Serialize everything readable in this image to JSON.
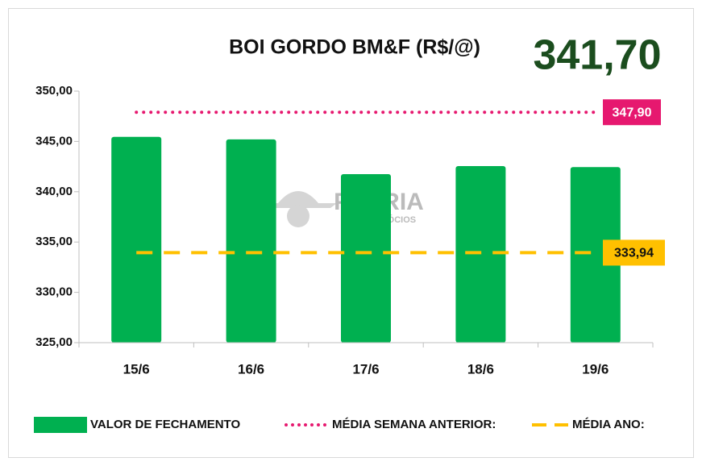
{
  "chart_data": {
    "type": "bar",
    "title": "BOI GORDO BM&F (R$/@)",
    "headline": "341,70",
    "watermark": {
      "brand": "PÁTRIA",
      "tagline": "AGRONEGÓCIOS"
    },
    "categories": [
      "15/6",
      "16/6",
      "17/6",
      "18/6",
      "19/6"
    ],
    "series": [
      {
        "name": "VALOR DE FECHAMENTO",
        "color": "#00b050",
        "values": [
          345.45,
          345.2,
          341.75,
          342.55,
          342.45
        ]
      }
    ],
    "reference_lines": [
      {
        "name": "MÉDIA SEMANA ANTERIOR:",
        "color": "#e6186f",
        "style": "dotted",
        "value": 347.9,
        "value_label": "347,90"
      },
      {
        "name": "MÉDIA ANO:",
        "color": "#ffc000",
        "style": "dashed",
        "value": 333.94,
        "value_label": "333,94"
      }
    ],
    "ylim": [
      325,
      350
    ],
    "yticks": [
      {
        "value": 325,
        "label": "325,00"
      },
      {
        "value": 330,
        "label": "330,00"
      },
      {
        "value": 335,
        "label": "335,00"
      },
      {
        "value": 340,
        "label": "340,00"
      },
      {
        "value": 345,
        "label": "345,00"
      },
      {
        "value": 350,
        "label": "350,00"
      }
    ],
    "legend": "bottom"
  }
}
